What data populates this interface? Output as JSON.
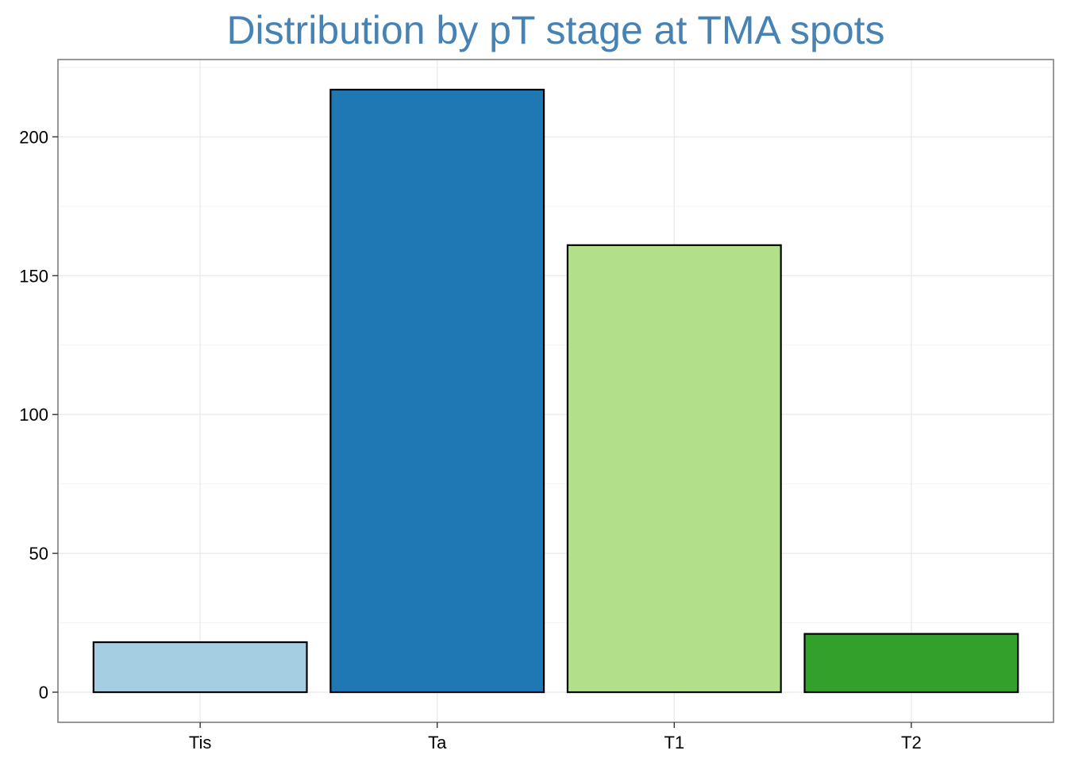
{
  "chart_data": {
    "type": "bar",
    "title": "Distribution by pT stage at TMA spots",
    "xlabel": "",
    "ylabel": "",
    "categories": [
      "Tis",
      "Ta",
      "T1",
      "T2"
    ],
    "values": [
      18,
      217,
      161,
      21
    ],
    "bar_colors": [
      "#a6cee3",
      "#1f78b4",
      "#b2df8a",
      "#33a02c"
    ],
    "bar_outline_color": "#000000",
    "title_color": "#4682b4",
    "ylim": [
      -10.85,
      227.85
    ],
    "yticks": [
      0,
      50,
      100,
      150,
      200
    ],
    "grid": true,
    "legend": "none"
  }
}
